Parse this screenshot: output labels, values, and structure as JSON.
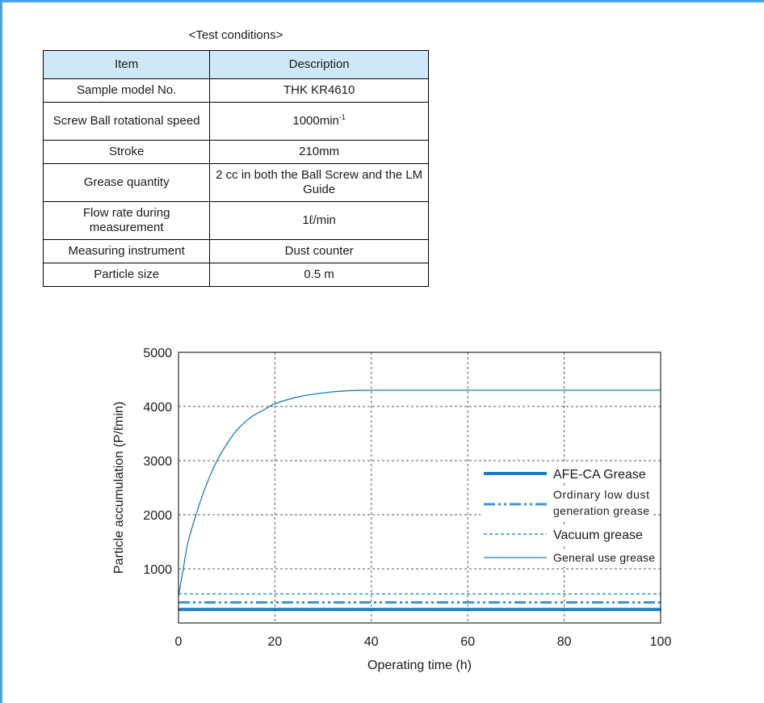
{
  "table": {
    "title": "<Test conditions>",
    "headers": [
      "Item",
      "Description"
    ],
    "rows": [
      {
        "item": "Sample model No.",
        "desc": "THK KR4610"
      },
      {
        "item": "Screw Ball rotational speed",
        "desc": "1000min",
        "desc_sup": "-1"
      },
      {
        "item": "Stroke",
        "desc": "210mm"
      },
      {
        "item": "Grease quantity",
        "desc": "2 cc in both the Ball Screw and the LM Guide"
      },
      {
        "item": "Flow rate during measurement",
        "desc": "1ℓ/min"
      },
      {
        "item": "Measuring instrument",
        "desc": "Dust counter"
      },
      {
        "item": "Particle size",
        "desc": "0.5 m"
      }
    ]
  },
  "chart_data": {
    "type": "line",
    "xlabel": "Operating time (h)",
    "ylabel": "Particle accumulation (P/ℓmin)",
    "xlim": [
      0,
      100
    ],
    "ylim": [
      0,
      5000
    ],
    "xticks": [
      0,
      20,
      40,
      60,
      80,
      100
    ],
    "yticks": [
      1000,
      2000,
      3000,
      4000,
      5000
    ],
    "grid": true,
    "legend_position": "right",
    "series": [
      {
        "name": "AFE-CA Grease",
        "style": "thick-solid",
        "color": "#1a7cc1",
        "x": [
          0,
          100
        ],
        "y": [
          250,
          250
        ]
      },
      {
        "name": "Ordinary low dust generation grease",
        "style": "dash-dot",
        "color": "#3e94d4",
        "x": [
          0,
          100
        ],
        "y": [
          380,
          380
        ]
      },
      {
        "name": "Vacuum grease",
        "style": "dotted",
        "color": "#5aaee8",
        "x": [
          0,
          100
        ],
        "y": [
          540,
          540
        ]
      },
      {
        "name": "General use grease",
        "style": "thin-solid",
        "color": "#1a7cc1",
        "x": [
          0,
          1,
          2,
          4,
          6,
          8,
          10,
          12,
          15,
          18,
          20,
          25,
          30,
          35,
          40,
          50,
          60,
          70,
          80,
          90,
          100
        ],
        "y": [
          500,
          1000,
          1500,
          2100,
          2600,
          3000,
          3300,
          3550,
          3800,
          3950,
          4050,
          4180,
          4250,
          4290,
          4300,
          4300,
          4300,
          4300,
          4300,
          4300,
          4300
        ]
      }
    ]
  }
}
